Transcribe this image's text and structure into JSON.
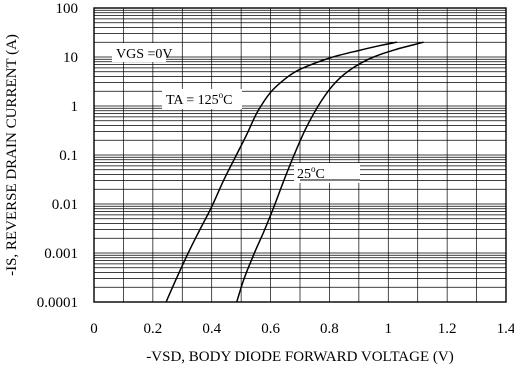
{
  "chart_data": {
    "type": "line",
    "title": "",
    "xlabel": "-VSD,  BODY DIODE FORWARD VOLTAGE (V)",
    "ylabel": "-IS, REVERSE DRAIN CURRENT (A)",
    "x_scale": "linear",
    "y_scale": "log",
    "xlim": [
      0,
      1.4
    ],
    "ylim": [
      0.0001,
      100
    ],
    "x_ticks": [
      0,
      0.2,
      0.4,
      0.6,
      0.8,
      1,
      1.2,
      1.4
    ],
    "x_tick_labels": [
      "0",
      "0.2",
      "0.4",
      "0.6",
      "0.8",
      "1",
      "1.2",
      "1.4"
    ],
    "y_ticks": [
      0.0001,
      0.001,
      0.01,
      0.1,
      1,
      10,
      100
    ],
    "y_tick_labels": [
      "0.0001",
      "0.001",
      "0.01",
      "0.1",
      "1",
      "10",
      "100"
    ],
    "grid": true,
    "annotations": {
      "vgs": "VGS =0V",
      "ta_prefix": "TA = 125",
      "ta_suffix": "C",
      "t25_prefix": "25",
      "t25_suffix": "C",
      "degree": "o"
    },
    "series": [
      {
        "points": [
          [
            0.245,
            0.0001
          ],
          [
            0.28,
            0.0003
          ],
          [
            0.32,
            0.001
          ],
          [
            0.36,
            0.003
          ],
          [
            0.4,
            0.0088
          ],
          [
            0.44,
            0.03
          ],
          [
            0.48,
            0.09
          ],
          [
            0.52,
            0.27
          ],
          [
            0.555,
            0.75
          ],
          [
            0.6,
            1.9
          ],
          [
            0.65,
            3.6
          ],
          [
            0.7,
            5.6
          ],
          [
            0.8,
            9.5
          ],
          [
            0.9,
            13.6
          ],
          [
            0.97,
            17.0
          ],
          [
            1.03,
            20.0
          ]
        ]
      },
      {
        "points": [
          [
            0.485,
            0.0001
          ],
          [
            0.51,
            0.0003
          ],
          [
            0.545,
            0.001
          ],
          [
            0.58,
            0.003
          ],
          [
            0.615,
            0.01
          ],
          [
            0.645,
            0.03
          ],
          [
            0.68,
            0.1
          ],
          [
            0.72,
            0.35
          ],
          [
            0.77,
            1.2
          ],
          [
            0.82,
            3.0
          ],
          [
            0.88,
            6.0
          ],
          [
            0.95,
            10.0
          ],
          [
            1.03,
            14.5
          ],
          [
            1.12,
            20.0
          ]
        ]
      }
    ]
  }
}
